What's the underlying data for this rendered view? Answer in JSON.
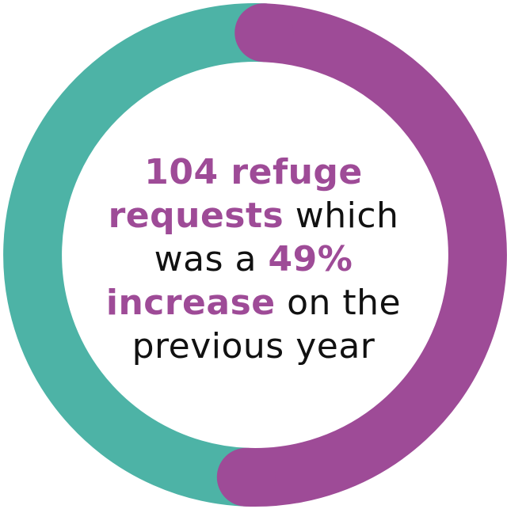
{
  "chart_data": {
    "type": "pie",
    "variant": "donut",
    "series": [
      {
        "label": "",
        "value": 50,
        "color": "#9e4b97"
      },
      {
        "label": "",
        "value": 50,
        "color": "#4db3a6"
      }
    ]
  },
  "caption": {
    "count": "104 refuge",
    "requests": "requests",
    "which": "which",
    "was_a": "was a",
    "percent": "49%",
    "increase": "increase",
    "on_the": "on the",
    "rest": "previous year"
  },
  "colors": {
    "highlight": "#9e4b97",
    "text": "#111111",
    "teal": "#4db3a6",
    "purple": "#9e4b97"
  }
}
